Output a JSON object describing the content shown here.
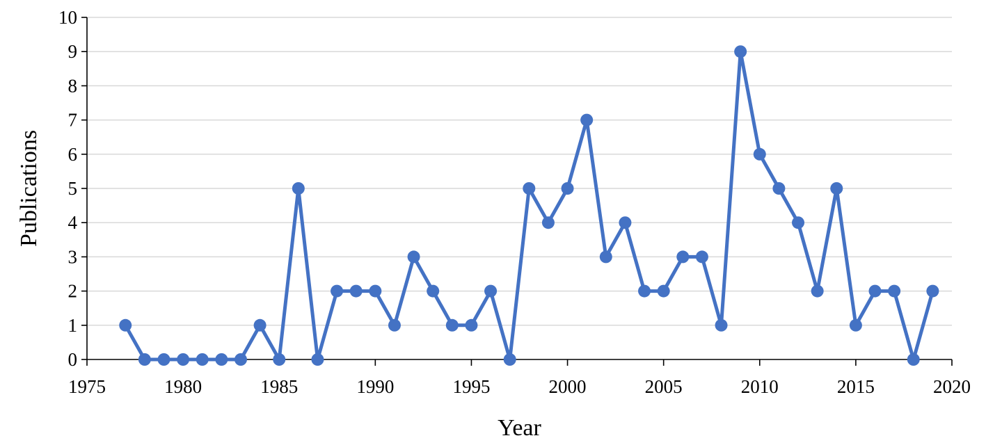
{
  "chart_data": {
    "type": "line",
    "title": "",
    "xlabel": "Year",
    "ylabel": "Publications",
    "xlim": [
      1975,
      2020
    ],
    "ylim": [
      0,
      10
    ],
    "x_ticks": [
      1975,
      1980,
      1985,
      1990,
      1995,
      2000,
      2005,
      2010,
      2015,
      2020
    ],
    "y_ticks": [
      0,
      1,
      2,
      3,
      4,
      5,
      6,
      7,
      8,
      9,
      10
    ],
    "grid": "horizontal",
    "legend": "none",
    "series": [
      {
        "color": "#4472c4",
        "marker": "circle",
        "x": [
          1977,
          1978,
          1979,
          1980,
          1981,
          1982,
          1983,
          1984,
          1985,
          1986,
          1987,
          1988,
          1989,
          1990,
          1991,
          1992,
          1993,
          1994,
          1995,
          1996,
          1997,
          1998,
          1999,
          2000,
          2001,
          2002,
          2003,
          2004,
          2005,
          2006,
          2007,
          2008,
          2009,
          2010,
          2011,
          2012,
          2013,
          2014,
          2015,
          2016,
          2017,
          2018,
          2019
        ],
        "y": [
          1,
          0,
          0,
          0,
          0,
          0,
          0,
          1,
          0,
          5,
          0,
          2,
          2,
          2,
          1,
          3,
          2,
          1,
          1,
          2,
          0,
          5,
          4,
          5,
          7,
          3,
          4,
          2,
          2,
          3,
          3,
          1,
          9,
          6,
          5,
          4,
          2,
          5,
          1,
          2,
          2,
          0,
          2
        ]
      }
    ]
  }
}
